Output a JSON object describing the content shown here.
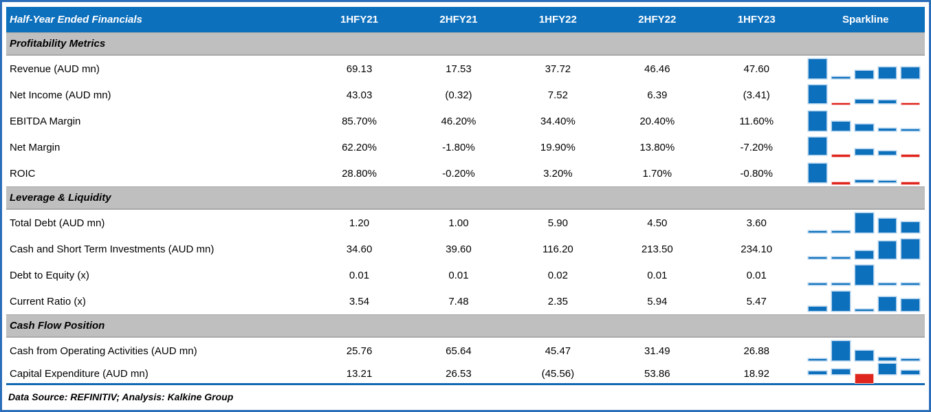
{
  "table": {
    "title": "Half-Year Ended Financials",
    "columns": [
      "1HFY21",
      "2HFY21",
      "1HFY22",
      "2HFY22",
      "1HFY23"
    ],
    "sparkline_header": "Sparkline",
    "sections": [
      {
        "label": "Profitability Metrics",
        "rows": [
          {
            "label": "Revenue (AUD mn)",
            "display": [
              "69.13",
              "17.53",
              "37.72",
              "46.46",
              "47.60"
            ],
            "values": [
              69.13,
              17.53,
              37.72,
              46.46,
              47.6
            ]
          },
          {
            "label": "Net Income (AUD mn)",
            "display": [
              "43.03",
              "(0.32)",
              "7.52",
              "6.39",
              "(3.41)"
            ],
            "values": [
              43.03,
              -0.32,
              7.52,
              6.39,
              -3.41
            ]
          },
          {
            "label": "EBITDA Margin",
            "display": [
              "85.70%",
              "46.20%",
              "34.40%",
              "20.40%",
              "11.60%"
            ],
            "values": [
              85.7,
              46.2,
              34.4,
              20.4,
              11.6
            ]
          },
          {
            "label": "Net Margin",
            "display": [
              "62.20%",
              "-1.80%",
              "19.90%",
              "13.80%",
              "-7.20%"
            ],
            "values": [
              62.2,
              -1.8,
              19.9,
              13.8,
              -7.2
            ]
          },
          {
            "label": "ROIC",
            "display": [
              "28.80%",
              "-0.20%",
              "3.20%",
              "1.70%",
              "-0.80%"
            ],
            "values": [
              28.8,
              -0.2,
              3.2,
              1.7,
              -0.8
            ]
          }
        ]
      },
      {
        "label": "Leverage & Liquidity",
        "rows": [
          {
            "label": "Total Debt (AUD mn)",
            "display": [
              "1.20",
              "1.00",
              "5.90",
              "4.50",
              "3.60"
            ],
            "values": [
              1.2,
              1.0,
              5.9,
              4.5,
              3.6
            ]
          },
          {
            "label": "Cash and Short Term Investments (AUD mn)",
            "display": [
              "34.60",
              "39.60",
              "116.20",
              "213.50",
              "234.10"
            ],
            "values": [
              34.6,
              39.6,
              116.2,
              213.5,
              234.1
            ]
          },
          {
            "label": "Debt to Equity (x)",
            "display": [
              "0.01",
              "0.01",
              "0.02",
              "0.01",
              "0.01"
            ],
            "values": [
              0.01,
              0.01,
              0.02,
              0.01,
              0.01
            ]
          },
          {
            "label": "Current Ratio (x)",
            "display": [
              "3.54",
              "7.48",
              "2.35",
              "5.94",
              "5.47"
            ],
            "values": [
              3.54,
              7.48,
              2.35,
              5.94,
              5.47
            ]
          }
        ]
      },
      {
        "label": "Cash Flow Position",
        "rows": [
          {
            "label": "Cash from Operating Activities (AUD mn)",
            "display": [
              "25.76",
              "65.64",
              "45.47",
              "31.49",
              "26.88"
            ],
            "values": [
              25.76,
              65.64,
              45.47,
              31.49,
              26.88
            ]
          },
          {
            "label": "Capital Expenditure (AUD mn)",
            "display": [
              "13.21",
              "26.53",
              "(45.56)",
              "53.86",
              "18.92"
            ],
            "values": [
              13.21,
              26.53,
              -45.56,
              53.86,
              18.92
            ]
          }
        ]
      }
    ],
    "footer": "Data Source: REFINITIV; Analysis: Kalkine Group"
  },
  "colors": {
    "header_bg": "#0d70bd",
    "header_text": "#ffffff",
    "section_band_bg": "#bfbfbf",
    "bar_positive": "#0d70bd",
    "bar_negative": "#df251d",
    "frame_border": "#2a6db8",
    "footer_rule": "#1268b3"
  },
  "chart_data": {
    "type": "table",
    "title": "Half-Year Ended Financials",
    "categories": [
      "1HFY21",
      "2HFY21",
      "1HFY22",
      "2HFY22",
      "1HFY23"
    ],
    "series": [
      {
        "name": "Revenue (AUD mn)",
        "section": "Profitability Metrics",
        "values": [
          69.13,
          17.53,
          37.72,
          46.46,
          47.6
        ]
      },
      {
        "name": "Net Income (AUD mn)",
        "section": "Profitability Metrics",
        "values": [
          43.03,
          -0.32,
          7.52,
          6.39,
          -3.41
        ]
      },
      {
        "name": "EBITDA Margin (%)",
        "section": "Profitability Metrics",
        "values": [
          85.7,
          46.2,
          34.4,
          20.4,
          11.6
        ]
      },
      {
        "name": "Net Margin (%)",
        "section": "Profitability Metrics",
        "values": [
          62.2,
          -1.8,
          19.9,
          13.8,
          -7.2
        ]
      },
      {
        "name": "ROIC (%)",
        "section": "Profitability Metrics",
        "values": [
          28.8,
          -0.2,
          3.2,
          1.7,
          -0.8
        ]
      },
      {
        "name": "Total Debt (AUD mn)",
        "section": "Leverage & Liquidity",
        "values": [
          1.2,
          1.0,
          5.9,
          4.5,
          3.6
        ]
      },
      {
        "name": "Cash and Short Term Investments (AUD mn)",
        "section": "Leverage & Liquidity",
        "values": [
          34.6,
          39.6,
          116.2,
          213.5,
          234.1
        ]
      },
      {
        "name": "Debt to Equity (x)",
        "section": "Leverage & Liquidity",
        "values": [
          0.01,
          0.01,
          0.02,
          0.01,
          0.01
        ]
      },
      {
        "name": "Current Ratio (x)",
        "section": "Leverage & Liquidity",
        "values": [
          3.54,
          7.48,
          2.35,
          5.94,
          5.47
        ]
      },
      {
        "name": "Cash from Operating Activities (AUD mn)",
        "section": "Cash Flow Position",
        "values": [
          25.76,
          65.64,
          45.47,
          31.49,
          26.88
        ]
      },
      {
        "name": "Capital Expenditure (AUD mn)",
        "section": "Cash Flow Position",
        "values": [
          13.21,
          26.53,
          -45.56,
          53.86,
          18.92
        ]
      }
    ],
    "sparkline": {
      "type": "bar",
      "positive_color": "#0d70bd",
      "negative_color": "#df251d",
      "scaling": "min-max per row, zero baseline when negatives present"
    },
    "legend_position": "none",
    "grid": false
  }
}
